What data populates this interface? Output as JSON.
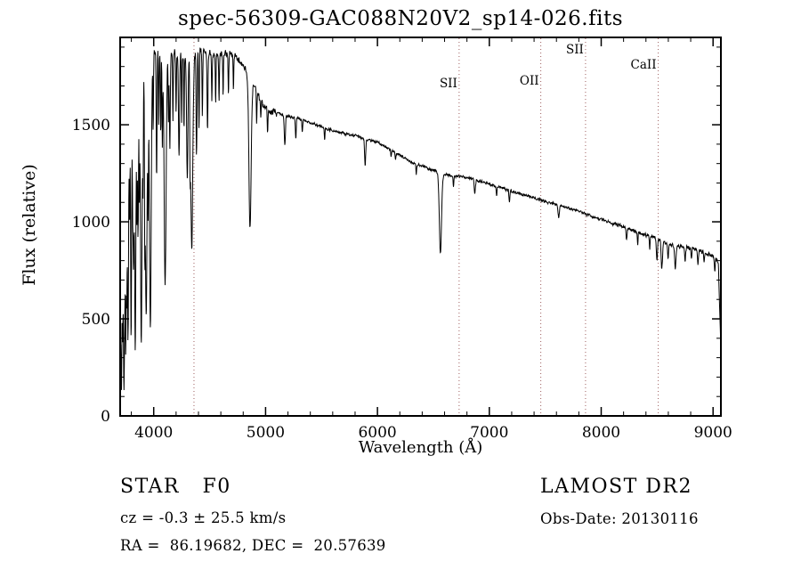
{
  "chart_data": {
    "type": "line",
    "title": "spec-56309-GAC088N20V2_sp14-026.fits",
    "xlabel": "Wavelength (Å)",
    "ylabel": "Flux (relative)",
    "xlim": [
      3700,
      9070
    ],
    "ylim": [
      0,
      1950
    ],
    "xticks": [
      4000,
      5000,
      6000,
      7000,
      8000,
      9000
    ],
    "xtick_minor_step": 200,
    "yticks": [
      0,
      500,
      1000,
      1500
    ],
    "ytick_minor_step": 100,
    "grid": false,
    "line_color": "#000000",
    "marker_line_color": "#9e5f5f",
    "sample_step": 2.5,
    "markers": [
      {
        "wavelength": 4360,
        "label": "",
        "label_y": 0
      },
      {
        "wavelength": 6730,
        "label": "SII",
        "label_y": 98
      },
      {
        "wavelength": 7460,
        "label": "OII",
        "label_y": 95
      },
      {
        "wavelength": 7860,
        "label": "SII",
        "label_y": 60
      },
      {
        "wavelength": 8510,
        "label": "CaII",
        "label_y": 77
      }
    ],
    "continuum": [
      [
        3700,
        300
      ],
      [
        3712,
        700
      ],
      [
        3725,
        1150
      ],
      [
        3740,
        1380
      ],
      [
        3755,
        1520
      ],
      [
        3775,
        1640
      ],
      [
        3800,
        1720
      ],
      [
        3840,
        1790
      ],
      [
        3880,
        1830
      ],
      [
        3930,
        1860
      ],
      [
        3980,
        1875
      ],
      [
        4050,
        1885
      ],
      [
        4150,
        1880
      ],
      [
        4250,
        1875
      ],
      [
        4350,
        1860
      ],
      [
        4450,
        1880
      ],
      [
        4550,
        1865
      ],
      [
        4650,
        1870
      ],
      [
        4720,
        1860
      ],
      [
        4780,
        1820
      ],
      [
        4830,
        1780
      ],
      [
        4880,
        1730
      ],
      [
        4930,
        1660
      ],
      [
        4980,
        1595
      ],
      [
        5030,
        1570
      ],
      [
        5100,
        1560
      ],
      [
        5200,
        1545
      ],
      [
        5300,
        1530
      ],
      [
        5400,
        1510
      ],
      [
        5500,
        1490
      ],
      [
        5600,
        1470
      ],
      [
        5700,
        1455
      ],
      [
        5800,
        1445
      ],
      [
        5900,
        1425
      ],
      [
        6000,
        1410
      ],
      [
        6100,
        1375
      ],
      [
        6200,
        1345
      ],
      [
        6300,
        1305
      ],
      [
        6400,
        1285
      ],
      [
        6500,
        1265
      ],
      [
        6600,
        1245
      ],
      [
        6700,
        1235
      ],
      [
        6800,
        1228
      ],
      [
        6900,
        1210
      ],
      [
        7000,
        1195
      ],
      [
        7100,
        1175
      ],
      [
        7200,
        1158
      ],
      [
        7300,
        1140
      ],
      [
        7400,
        1125
      ],
      [
        7500,
        1105
      ],
      [
        7600,
        1090
      ],
      [
        7700,
        1072
      ],
      [
        7800,
        1055
      ],
      [
        7900,
        1032
      ],
      [
        8000,
        1012
      ],
      [
        8100,
        992
      ],
      [
        8200,
        972
      ],
      [
        8300,
        950
      ],
      [
        8400,
        932
      ],
      [
        8500,
        915
      ],
      [
        8600,
        882
      ],
      [
        8700,
        872
      ],
      [
        8800,
        862
      ],
      [
        8900,
        845
      ],
      [
        8980,
        828
      ],
      [
        9030,
        810
      ],
      [
        9048,
        780
      ],
      [
        9058,
        560
      ],
      [
        9068,
        390
      ]
    ],
    "absorption_lines": [
      [
        3712,
        150,
        4
      ],
      [
        3722,
        500,
        3
      ],
      [
        3727,
        900,
        3
      ],
      [
        3734,
        200,
        4
      ],
      [
        3741,
        800,
        3
      ],
      [
        3750,
        320,
        4
      ],
      [
        3759,
        750,
        3
      ],
      [
        3770,
        360,
        5
      ],
      [
        3784,
        1050,
        3
      ],
      [
        3798,
        420,
        5
      ],
      [
        3812,
        1150,
        3
      ],
      [
        3820,
        820,
        4
      ],
      [
        3835,
        320,
        6
      ],
      [
        3850,
        1080,
        3
      ],
      [
        3860,
        900,
        4
      ],
      [
        3872,
        1180,
        3
      ],
      [
        3889,
        360,
        7
      ],
      [
        3905,
        1250,
        3
      ],
      [
        3920,
        1120,
        3
      ],
      [
        3933,
        520,
        8
      ],
      [
        3950,
        1200,
        3
      ],
      [
        3970,
        470,
        8
      ],
      [
        3995,
        1480,
        3
      ],
      [
        4026,
        1230,
        4
      ],
      [
        4045,
        1500,
        3
      ],
      [
        4063,
        1460,
        3
      ],
      [
        4077,
        1400,
        3
      ],
      [
        4102,
        680,
        9
      ],
      [
        4132,
        1520,
        3
      ],
      [
        4144,
        1380,
        4
      ],
      [
        4172,
        1520,
        3
      ],
      [
        4200,
        1560,
        3
      ],
      [
        4226,
        1330,
        5
      ],
      [
        4250,
        1520,
        3
      ],
      [
        4271,
        1470,
        3
      ],
      [
        4300,
        1230,
        6
      ],
      [
        4325,
        1430,
        3
      ],
      [
        4340,
        860,
        9
      ],
      [
        4383,
        1330,
        4
      ],
      [
        4405,
        1470,
        3
      ],
      [
        4435,
        1560,
        3
      ],
      [
        4481,
        1460,
        4
      ],
      [
        4520,
        1620,
        3
      ],
      [
        4554,
        1600,
        3
      ],
      [
        4584,
        1620,
        3
      ],
      [
        4620,
        1650,
        3
      ],
      [
        4668,
        1660,
        3
      ],
      [
        4713,
        1680,
        3
      ],
      [
        4861,
        960,
        10
      ],
      [
        4920,
        1500,
        3
      ],
      [
        4957,
        1520,
        3
      ],
      [
        5018,
        1450,
        3
      ],
      [
        5172,
        1390,
        5
      ],
      [
        5270,
        1430,
        4
      ],
      [
        5328,
        1460,
        3
      ],
      [
        5528,
        1420,
        3
      ],
      [
        5890,
        1290,
        5
      ],
      [
        6122,
        1330,
        3
      ],
      [
        6162,
        1320,
        3
      ],
      [
        6347,
        1240,
        3
      ],
      [
        6563,
        845,
        10
      ],
      [
        6680,
        1180,
        3
      ],
      [
        6870,
        1150,
        5
      ],
      [
        7065,
        1130,
        3
      ],
      [
        7180,
        1100,
        4
      ],
      [
        7620,
        1020,
        6
      ],
      [
        8226,
        900,
        4
      ],
      [
        8327,
        880,
        3
      ],
      [
        8434,
        860,
        3
      ],
      [
        8498,
        800,
        5
      ],
      [
        8542,
        755,
        6
      ],
      [
        8598,
        815,
        4
      ],
      [
        8662,
        765,
        6
      ],
      [
        8750,
        795,
        4
      ],
      [
        8806,
        810,
        3
      ],
      [
        8865,
        780,
        4
      ],
      [
        8920,
        790,
        3
      ],
      [
        9015,
        750,
        4
      ]
    ],
    "noise": {
      "seed": 20130116,
      "blue_amp": 34,
      "mid_amp": 9,
      "red_amp": 13
    }
  },
  "footer": {
    "class_line": "STAR   F0",
    "survey": "LAMOST DR2",
    "cz": "cz = -0.3 ± 25.5 km/s",
    "obs_date": "Obs-Date: 20130116",
    "radec": "RA =  86.19682, DEC =  20.57639"
  }
}
